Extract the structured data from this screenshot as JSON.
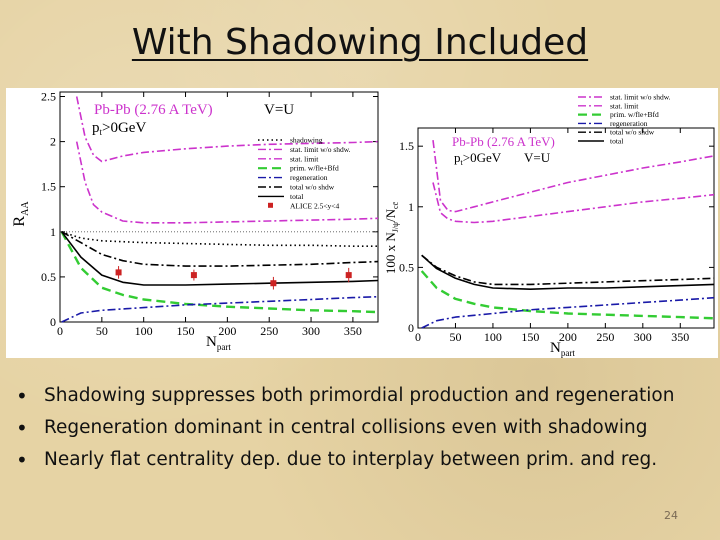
{
  "slide": {
    "title": "With Shadowing Included",
    "bullets": [
      "Shadowing suppresses both primordial production and regeneration",
      "Regeneration dominant in central collisions even with shadowing",
      "Nearly flat centrality dep. due to interplay between prim. and reg."
    ],
    "page_number": "24"
  },
  "chart_data": [
    {
      "type": "line",
      "ylabel": "R_AA",
      "xlabel": "N_part",
      "xlim": [
        0,
        380
      ],
      "ylim": [
        0,
        2.55
      ],
      "xticks": [
        0,
        50,
        100,
        150,
        200,
        250,
        300,
        350
      ],
      "yticks": [
        0,
        0.5,
        1,
        1.5,
        2,
        2.5
      ],
      "reference_line": 1,
      "annotations": [
        "Pb-Pb (2.76 A TeV)",
        "V=U",
        "p_t>0GeV"
      ],
      "legend_position": "top-right inside",
      "series": [
        {
          "name": "shadowing",
          "color": "#000000",
          "style": "dotted",
          "x": [
            2,
            25,
            50,
            100,
            150,
            200,
            250,
            300,
            350,
            380
          ],
          "y": [
            1.0,
            0.93,
            0.9,
            0.88,
            0.87,
            0.86,
            0.85,
            0.85,
            0.84,
            0.84
          ]
        },
        {
          "name": "stat. limit w/o shdw.",
          "color": "#cc33cc",
          "style": "dashdot",
          "x": [
            20,
            30,
            40,
            50,
            75,
            100,
            150,
            200,
            250,
            300,
            350,
            380
          ],
          "y": [
            2.5,
            2.05,
            1.85,
            1.78,
            1.84,
            1.88,
            1.92,
            1.95,
            1.97,
            1.98,
            1.99,
            2.0
          ]
        },
        {
          "name": "stat. limit",
          "color": "#cc33cc",
          "style": "dashdot",
          "x": [
            20,
            30,
            40,
            50,
            75,
            100,
            150,
            200,
            250,
            300,
            350,
            380
          ],
          "y": [
            2.0,
            1.55,
            1.3,
            1.22,
            1.12,
            1.1,
            1.1,
            1.11,
            1.12,
            1.13,
            1.14,
            1.15
          ]
        },
        {
          "name": "prim. w/fle+Bfd",
          "color": "#33cc33",
          "style": "dashed",
          "x": [
            2,
            25,
            50,
            75,
            100,
            150,
            200,
            250,
            300,
            350,
            380
          ],
          "y": [
            1.0,
            0.6,
            0.38,
            0.3,
            0.25,
            0.2,
            0.17,
            0.15,
            0.13,
            0.12,
            0.11
          ]
        },
        {
          "name": "regeneration",
          "color": "#1a1aa8",
          "style": "dashdot",
          "x": [
            2,
            25,
            50,
            100,
            150,
            200,
            250,
            300,
            350,
            380
          ],
          "y": [
            0.0,
            0.1,
            0.13,
            0.16,
            0.19,
            0.21,
            0.23,
            0.25,
            0.27,
            0.28
          ]
        },
        {
          "name": "total w/o shdw",
          "color": "#000000",
          "style": "dashdot",
          "x": [
            2,
            25,
            50,
            75,
            100,
            150,
            200,
            250,
            300,
            350,
            380
          ],
          "y": [
            1.0,
            0.88,
            0.75,
            0.68,
            0.64,
            0.62,
            0.62,
            0.63,
            0.64,
            0.66,
            0.67
          ]
        },
        {
          "name": "total",
          "color": "#000000",
          "style": "solid",
          "x": [
            2,
            25,
            50,
            75,
            100,
            150,
            200,
            250,
            300,
            350,
            380
          ],
          "y": [
            1.0,
            0.72,
            0.52,
            0.44,
            0.41,
            0.41,
            0.42,
            0.43,
            0.44,
            0.45,
            0.46
          ]
        },
        {
          "name": "ALICE 2.5<y<4",
          "color": "#cc2222",
          "style": "markers",
          "x": [
            70,
            160,
            255,
            345
          ],
          "y": [
            0.55,
            0.52,
            0.43,
            0.52
          ],
          "yerr": [
            0.07,
            0.06,
            0.07,
            0.08
          ]
        }
      ]
    },
    {
      "type": "line",
      "ylabel": "100 x N_J/psi/N_cc",
      "xlabel": "N_part",
      "xlim": [
        0,
        395
      ],
      "ylim": [
        0,
        1.65
      ],
      "xticks": [
        0,
        50,
        100,
        150,
        200,
        250,
        300,
        350
      ],
      "yticks": [
        0,
        0.5,
        1,
        1.5
      ],
      "annotations": [
        "Pb-Pb (2.76 A TeV)",
        "p_t>0GeV",
        "V=U"
      ],
      "legend_position": "top-right outside",
      "series": [
        {
          "name": "stat. limit w/o shdw.",
          "color": "#cc33cc",
          "style": "dashdot",
          "x": [
            20,
            30,
            40,
            50,
            75,
            100,
            150,
            200,
            250,
            300,
            350,
            395
          ],
          "y": [
            1.55,
            1.05,
            0.97,
            0.96,
            1.0,
            1.04,
            1.12,
            1.2,
            1.26,
            1.32,
            1.37,
            1.42
          ]
        },
        {
          "name": "stat. limit",
          "color": "#cc33cc",
          "style": "dashdot",
          "x": [
            20,
            30,
            40,
            50,
            75,
            100,
            150,
            200,
            250,
            300,
            350,
            395
          ],
          "y": [
            1.2,
            0.95,
            0.9,
            0.88,
            0.87,
            0.88,
            0.92,
            0.96,
            1.0,
            1.04,
            1.07,
            1.1
          ]
        },
        {
          "name": "prim. w/fle+Bfd",
          "color": "#33cc33",
          "style": "dashed",
          "x": [
            5,
            25,
            50,
            75,
            100,
            150,
            200,
            250,
            300,
            350,
            395
          ],
          "y": [
            0.47,
            0.33,
            0.24,
            0.2,
            0.17,
            0.14,
            0.12,
            0.11,
            0.1,
            0.09,
            0.08
          ]
        },
        {
          "name": "regeneration",
          "color": "#1a1aa8",
          "style": "dashdot",
          "x": [
            5,
            25,
            50,
            100,
            150,
            200,
            250,
            300,
            350,
            395
          ],
          "y": [
            0.0,
            0.06,
            0.09,
            0.12,
            0.15,
            0.17,
            0.19,
            0.21,
            0.23,
            0.25
          ]
        },
        {
          "name": "total w/o shdw",
          "color": "#000000",
          "style": "dashdot",
          "x": [
            5,
            25,
            50,
            75,
            100,
            150,
            200,
            250,
            300,
            350,
            395
          ],
          "y": [
            0.6,
            0.5,
            0.43,
            0.38,
            0.36,
            0.36,
            0.37,
            0.38,
            0.39,
            0.4,
            0.41
          ]
        },
        {
          "name": "total",
          "color": "#000000",
          "style": "solid",
          "x": [
            5,
            25,
            50,
            75,
            100,
            150,
            200,
            250,
            300,
            350,
            395
          ],
          "y": [
            0.6,
            0.49,
            0.41,
            0.36,
            0.33,
            0.32,
            0.33,
            0.33,
            0.34,
            0.35,
            0.36
          ]
        }
      ]
    }
  ]
}
